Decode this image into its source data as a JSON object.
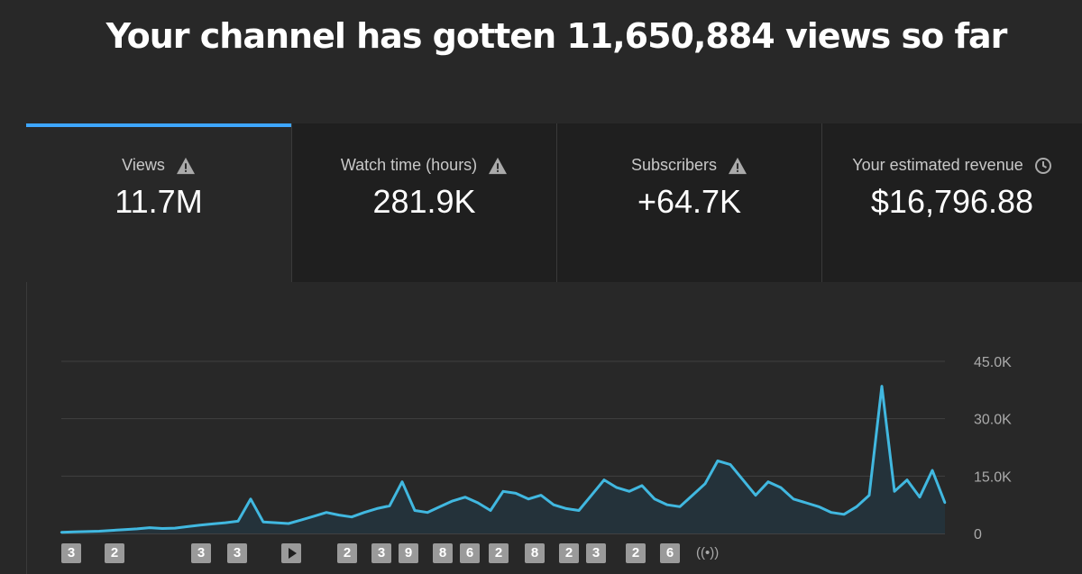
{
  "headline": "Your channel has gotten 11,650,884 views so far",
  "tabs": [
    {
      "label": "Views",
      "value": "11.7M",
      "icon": "warning-icon",
      "active": true
    },
    {
      "label": "Watch time (hours)",
      "value": "281.9K",
      "icon": "warning-icon",
      "active": false
    },
    {
      "label": "Subscribers",
      "value": "+64.7K",
      "icon": "warning-icon",
      "active": false
    },
    {
      "label": "Your estimated revenue",
      "value": "$16,796.88",
      "icon": "clock-icon",
      "active": false
    }
  ],
  "colors": {
    "accent": "#3ea6ff",
    "series": "#41b8e0",
    "background": "#282828",
    "tab_inactive": "#1f1f1f",
    "marker": "#9a9a9a"
  },
  "markers": [
    "3",
    "2",
    "3",
    "3",
    "play",
    "2",
    "3",
    "9",
    "8",
    "6",
    "2",
    "8",
    "2",
    "3",
    "2",
    "6",
    "live"
  ],
  "chart_data": {
    "type": "area",
    "title": "",
    "xlabel": "",
    "ylabel": "",
    "y_ticks": [
      "45.0K",
      "30.0K",
      "15.0K",
      "0"
    ],
    "y_tick_values": [
      45000,
      30000,
      15000,
      0
    ],
    "ylim": [
      0,
      45000
    ],
    "grid": true,
    "series": [
      {
        "values": [
          300,
          400,
          500,
          600,
          800,
          1000,
          1200,
          1500,
          1300,
          1400,
          1800,
          2200,
          2500,
          2800,
          3200,
          9000,
          3000,
          2800,
          2600,
          3500,
          4500,
          5500,
          4800,
          4300,
          5500,
          6500,
          7200,
          13500,
          6000,
          5500,
          7000,
          8500,
          9500,
          8000,
          6000,
          11000,
          10500,
          9000,
          10000,
          7500,
          6500,
          6000,
          10000,
          14000,
          12000,
          11000,
          12500,
          9000,
          7500,
          7000,
          10000,
          13000,
          19000,
          18000,
          14000,
          10000,
          13500,
          12000,
          9000,
          8000,
          7000,
          5500,
          5000,
          7000,
          10000,
          38500,
          11000,
          14000,
          9500,
          16500,
          8000
        ]
      }
    ]
  }
}
